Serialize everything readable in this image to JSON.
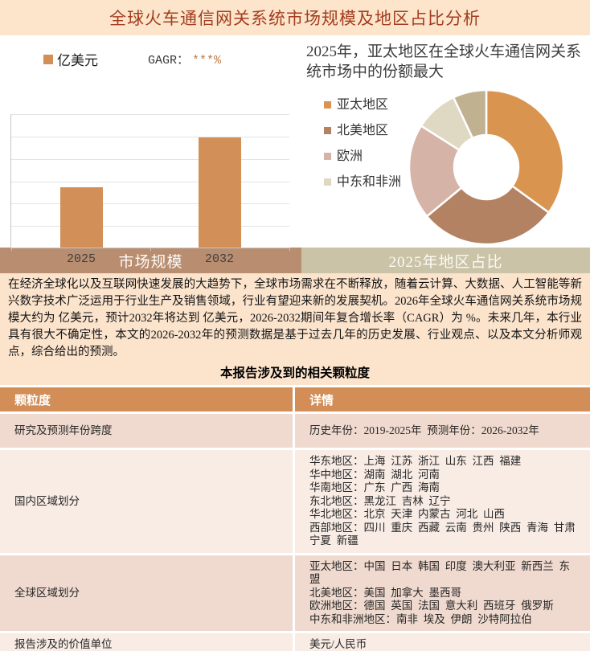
{
  "page": {
    "title": "全球火车通信网关系统市场规模及地区占比分析"
  },
  "tabs": {
    "left": "市场规模",
    "right": "2025年地区占比"
  },
  "chart_data": [
    {
      "type": "bar",
      "title": "",
      "unit_legend": "亿美元",
      "cagr_label": "GAGR：",
      "cagr_value": "***%",
      "categories": [
        "2025",
        "2032"
      ],
      "values": [
        45,
        82
      ],
      "values_note": "actual values masked (***) in source; heights estimated as % of axis",
      "ylim": [
        0,
        100
      ],
      "grid": true,
      "bar_color": "#D28F57"
    },
    {
      "type": "pie",
      "subtype": "donut",
      "title": "2025年，亚太地区在全球火车通信网关系统市场中的份额最大",
      "legend_position": "left",
      "segments": [
        {
          "label": "亚太地区",
          "value": 35,
          "color": "#D9944F",
          "in_legend": true
        },
        {
          "label": "北美地区",
          "value": 29,
          "color": "#B28263",
          "in_legend": true
        },
        {
          "label": "欧洲",
          "value": 20,
          "color": "#D5B3A7",
          "in_legend": true
        },
        {
          "label": "中东和非洲",
          "value": 9,
          "color": "#DFD8C3",
          "in_legend": true
        },
        {
          "label": "",
          "value": 7,
          "color": "#C0B291",
          "in_legend": false
        }
      ]
    }
  ],
  "paragraph": "在经济全球化以及互联网快速发展的大趋势下，全球市场需求在不断释放，随着云计算、大数据、人工智能等新兴数字技术广泛运用于行业生产及销售领域，行业有望迎来新的发展契机。2026年全球火车通信网关系统市场规模大约为 亿美元，预计2032年将达到 亿美元，2026-2032期间年复合增长率（CAGR）为 %。未来几年，本行业具有很大不确定性，本文的2026-2032年的预测数据是基于过去几年的历史发展、行业观点、以及本文分析师观点，综合给出的预测。",
  "table": {
    "heading": "本报告涉及到的相关颗粒度",
    "columns": [
      "颗粒度",
      "详情"
    ],
    "rows": [
      {
        "granularity": "研究及预测年份跨度",
        "detail": "历史年份：2019-2025年  预测年份：2026-2032年"
      },
      {
        "granularity": "国内区域划分",
        "detail": "华东地区：上海  江苏  浙江  山东  江西  福建\n华中地区：湖南  湖北  河南\n华南地区：广东  广西  海南\n东北地区：黑龙江  吉林  辽宁\n华北地区：北京  天津  内蒙古  河北  山西\n西部地区：四川  重庆  西藏  云南  贵州  陕西  青海  甘肃  宁夏  新疆"
      },
      {
        "granularity": "全球区域划分",
        "detail": "亚太地区：中国  日本  韩国  印度  澳大利亚  新西兰  东盟\n北美地区：美国  加拿大  墨西哥\n欧洲地区：德国  英国  法国  意大利  西班牙  俄罗斯\n中东和非洲地区：南非  埃及  伊朗  沙特阿拉伯"
      },
      {
        "granularity": "报告涉及的价值单位",
        "detail": "美元/人民币"
      }
    ]
  },
  "colors": {
    "title_bg": "#FCE5CB",
    "title_text": "#A33D20",
    "bar": "#D28F57",
    "tab_left_bg": "#B98E70",
    "tab_right_bg": "#CBC3A7",
    "content_bg": "#FBE3CC",
    "table_header_bg": "#D28E56",
    "row_odd_bg": "#F0DACF",
    "row_even_bg": "#F8ECE5"
  }
}
